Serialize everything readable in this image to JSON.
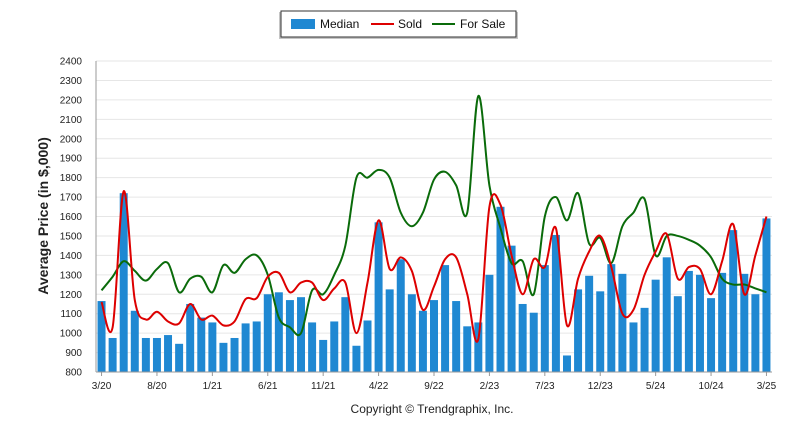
{
  "chart_data": {
    "type": "bar",
    "ylabel": "Average Price (in $,000)",
    "xlabel": "",
    "ylim": [
      800,
      2400
    ],
    "yticks": [
      800,
      900,
      1000,
      1100,
      1200,
      1300,
      1400,
      1500,
      1600,
      1700,
      1800,
      1900,
      2000,
      2100,
      2200,
      2300,
      2400
    ],
    "grid": true,
    "legend_position": "top-center",
    "x_tick_labels": [
      {
        "index": 0,
        "label": "3/20"
      },
      {
        "index": 5,
        "label": "8/20"
      },
      {
        "index": 10,
        "label": "1/21"
      },
      {
        "index": 15,
        "label": "6/21"
      },
      {
        "index": 20,
        "label": "11/21"
      },
      {
        "index": 25,
        "label": "4/22"
      },
      {
        "index": 30,
        "label": "9/22"
      },
      {
        "index": 35,
        "label": "2/23"
      },
      {
        "index": 40,
        "label": "7/23"
      },
      {
        "index": 45,
        "label": "12/23"
      },
      {
        "index": 50,
        "label": "5/24"
      },
      {
        "index": 55,
        "label": "10/24"
      },
      {
        "index": 60,
        "label": "3/25"
      }
    ],
    "series": [
      {
        "name": "Median",
        "kind": "bar",
        "color": "#1f88d2",
        "values": [
          1165,
          975,
          1720,
          1115,
          975,
          975,
          990,
          945,
          1150,
          1080,
          1055,
          950,
          975,
          1050,
          1060,
          1200,
          1210,
          1170,
          1185,
          1055,
          965,
          1060,
          1185,
          935,
          1065,
          1570,
          1225,
          1380,
          1200,
          1115,
          1170,
          1350,
          1165,
          1035,
          1055,
          1300,
          1650,
          1450,
          1150,
          1105,
          1350,
          1505,
          885,
          1225,
          1295,
          1215,
          1355,
          1305,
          1055,
          1130,
          1275,
          1390,
          1190,
          1320,
          1300,
          1180,
          1310,
          1530,
          1305,
          1200,
          1590
        ]
      },
      {
        "name": "Sold",
        "kind": "line",
        "color": "#dd0000",
        "values": [
          1160,
          1030,
          1730,
          1170,
          1070,
          1110,
          1060,
          1050,
          1150,
          1070,
          1090,
          1040,
          1060,
          1175,
          1180,
          1290,
          1310,
          1210,
          1260,
          1260,
          1170,
          1230,
          1260,
          1000,
          1260,
          1580,
          1330,
          1390,
          1320,
          1120,
          1240,
          1380,
          1390,
          1200,
          970,
          1650,
          1660,
          1400,
          1200,
          1380,
          1340,
          1540,
          1040,
          1280,
          1420,
          1500,
          1340,
          1100,
          1120,
          1300,
          1420,
          1510,
          1280,
          1340,
          1330,
          1200,
          1370,
          1560,
          1200,
          1400,
          1600
        ]
      },
      {
        "name": "For Sale",
        "kind": "line",
        "color": "#0a6b0a",
        "values": [
          1220,
          1290,
          1370,
          1320,
          1270,
          1330,
          1360,
          1210,
          1280,
          1290,
          1210,
          1350,
          1310,
          1380,
          1400,
          1300,
          1080,
          1030,
          1000,
          1220,
          1200,
          1300,
          1450,
          1800,
          1800,
          1840,
          1800,
          1620,
          1550,
          1620,
          1790,
          1830,
          1760,
          1620,
          2220,
          1760,
          1540,
          1360,
          1370,
          1200,
          1600,
          1700,
          1580,
          1720,
          1460,
          1490,
          1360,
          1550,
          1620,
          1690,
          1400,
          1500,
          1500,
          1480,
          1450,
          1390,
          1280,
          1250,
          1250,
          1230,
          1210
        ]
      }
    ]
  },
  "legend": {
    "median": "Median",
    "sold": "Sold",
    "for_sale": "For Sale"
  },
  "copyright": "Copyright © Trendgraphix, Inc."
}
